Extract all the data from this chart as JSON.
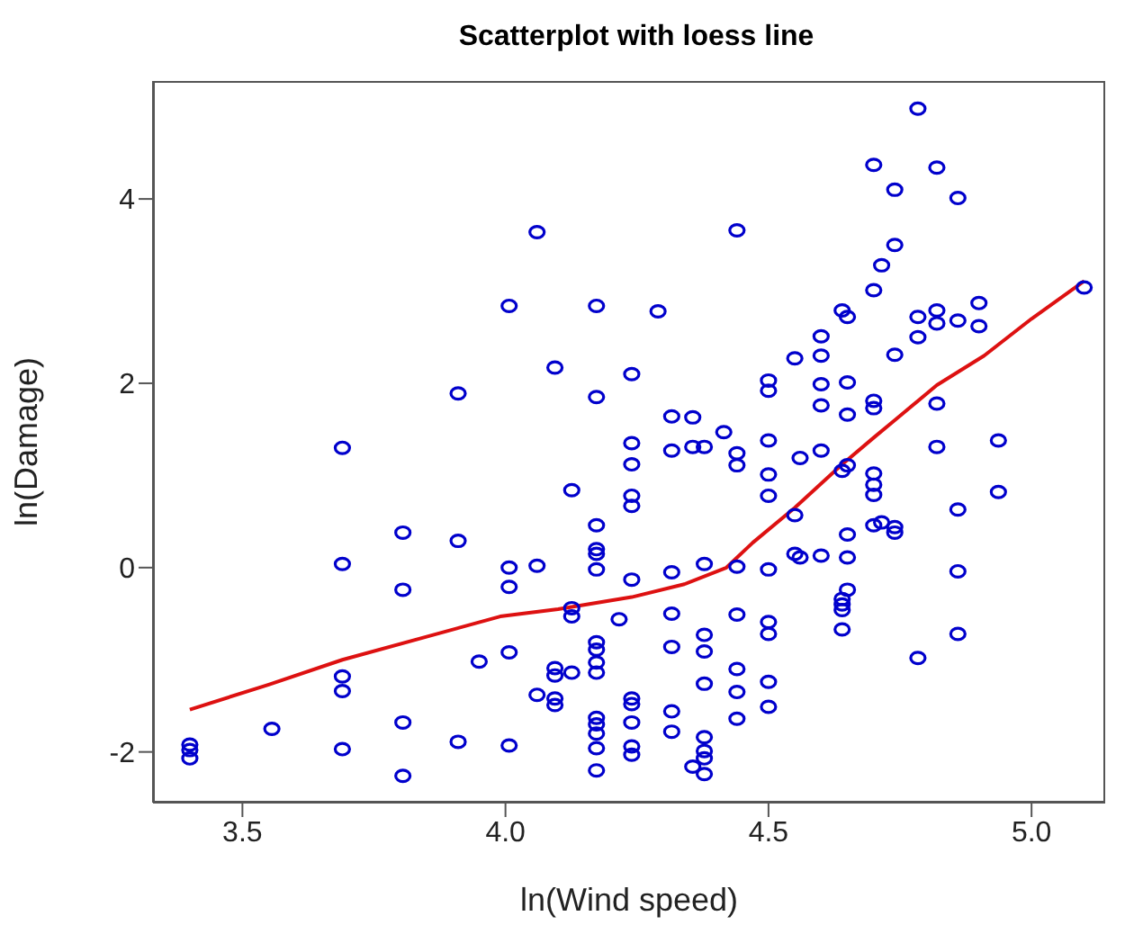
{
  "chart_data": {
    "type": "scatter",
    "title": "Scatterplot with loess line",
    "xlabel": "ln(Wind speed)",
    "ylabel": "ln(Damage)",
    "xlim": [
      3.33,
      5.14
    ],
    "ylim": [
      -2.55,
      5.28
    ],
    "xticks": [
      3.5,
      {
        "value": 4,
        "label": "4.0"
      },
      4.5,
      {
        "value": 5,
        "label": "5.0"
      }
    ],
    "yticks": [
      -2,
      0,
      2,
      4
    ],
    "grid": false,
    "legend": false,
    "series": [
      {
        "marker": "circle",
        "color": "#0000cc",
        "x": [
          3.4,
          3.4,
          3.4,
          3.556,
          3.69,
          3.69,
          3.69,
          3.69,
          3.69,
          3.805,
          3.805,
          3.805,
          3.805,
          3.91,
          3.91,
          3.91,
          3.95,
          4.007,
          4.007,
          4.007,
          4.007,
          4.007,
          4.06,
          4.06,
          4.06,
          4.094,
          4.094,
          4.094,
          4.094,
          4.094,
          4.126,
          4.126,
          4.126,
          4.126,
          4.173,
          4.173,
          4.173,
          4.173,
          4.173,
          4.173,
          4.173,
          4.173,
          4.173,
          4.173,
          4.173,
          4.173,
          4.173,
          4.173,
          4.173,
          4.216,
          4.24,
          4.24,
          4.24,
          4.24,
          4.24,
          4.24,
          4.24,
          4.24,
          4.24,
          4.24,
          4.24,
          4.29,
          4.316,
          4.316,
          4.316,
          4.316,
          4.316,
          4.316,
          4.316,
          4.356,
          4.356,
          4.356,
          4.378,
          4.378,
          4.378,
          4.378,
          4.378,
          4.378,
          4.378,
          4.378,
          4.378,
          4.415,
          4.44,
          4.44,
          4.44,
          4.44,
          4.44,
          4.44,
          4.44,
          4.44,
          4.5,
          4.5,
          4.5,
          4.5,
          4.5,
          4.5,
          4.5,
          4.5,
          4.5,
          4.5,
          4.55,
          4.55,
          4.55,
          4.56,
          4.56,
          4.6,
          4.6,
          4.6,
          4.6,
          4.6,
          4.6,
          4.64,
          4.64,
          4.64,
          4.64,
          4.64,
          4.64,
          4.65,
          4.65,
          4.65,
          4.65,
          4.65,
          4.65,
          4.65,
          4.7,
          4.7,
          4.7,
          4.7,
          4.7,
          4.7,
          4.7,
          4.7,
          4.715,
          4.715,
          4.74,
          4.74,
          4.74,
          4.74,
          4.74,
          4.784,
          4.784,
          4.784,
          4.784,
          4.82,
          4.82,
          4.82,
          4.82,
          4.82,
          4.86,
          4.86,
          4.86,
          4.86,
          4.86,
          4.9,
          4.9,
          4.937,
          4.937,
          5.1
        ],
        "values": [
          -1.92,
          -1.98,
          -2.07,
          -1.75,
          1.3,
          0.04,
          -1.18,
          -1.34,
          -1.97,
          0.38,
          -0.24,
          -1.68,
          -2.26,
          1.89,
          0.29,
          -1.89,
          -1.02,
          2.84,
          0,
          -0.21,
          -0.92,
          -1.93,
          3.64,
          0.02,
          -1.38,
          2.17,
          -1.09,
          -1.17,
          -1.42,
          -1.49,
          0.84,
          -0.44,
          -0.53,
          -1.14,
          2.84,
          1.85,
          0.46,
          0.2,
          0.15,
          -0.02,
          -0.81,
          -0.89,
          -1.03,
          -1.14,
          -1.63,
          -1.7,
          -1.8,
          -1.96,
          -2.2,
          -0.56,
          2.1,
          1.35,
          1.12,
          0.78,
          0.67,
          -0.13,
          -1.42,
          -1.48,
          -1.68,
          -1.94,
          -2.03,
          2.78,
          1.64,
          1.27,
          -0.05,
          -0.5,
          -0.86,
          -1.56,
          -1.78,
          1.63,
          1.31,
          -2.16,
          1.31,
          0.04,
          -0.73,
          -0.91,
          -1.26,
          -1.84,
          -1.99,
          -2.07,
          -2.24,
          1.47,
          3.66,
          1.24,
          1.11,
          0.01,
          -0.51,
          -1.1,
          -1.35,
          -1.64,
          2.03,
          1.92,
          1.38,
          1.01,
          0.78,
          -0.02,
          -0.59,
          -0.72,
          -1.24,
          -1.51,
          2.27,
          0.57,
          0.15,
          1.19,
          0.11,
          2.51,
          2.3,
          1.99,
          1.76,
          1.27,
          0.13,
          2.79,
          1.05,
          -0.34,
          -0.4,
          -0.46,
          -0.67,
          2.72,
          2.01,
          1.66,
          1.11,
          0.36,
          0.11,
          -0.24,
          4.37,
          3.01,
          1.81,
          1.73,
          1.02,
          0.9,
          0.79,
          0.46,
          3.28,
          0.49,
          4.1,
          3.5,
          2.31,
          0.44,
          0.38,
          4.98,
          2.72,
          2.5,
          -0.98,
          4.34,
          2.79,
          2.65,
          1.78,
          1.31,
          4.01,
          2.68,
          0.63,
          -0.04,
          -0.72,
          2.87,
          2.62,
          1.38,
          0.82,
          3.04
        ]
      },
      {
        "type": "line",
        "color": "#dd1111",
        "x": [
          3.4,
          3.55,
          3.69,
          3.85,
          3.99,
          4.1,
          4.24,
          4.34,
          4.42,
          4.47,
          4.55,
          4.64,
          4.7,
          4.74,
          4.82,
          4.91,
          5.0,
          5.1
        ],
        "values": [
          -1.54,
          -1.27,
          -1.0,
          -0.75,
          -0.53,
          -0.45,
          -0.32,
          -0.18,
          0.0,
          0.27,
          0.65,
          1.12,
          1.41,
          1.6,
          1.98,
          2.3,
          2.7,
          3.11
        ]
      }
    ]
  }
}
